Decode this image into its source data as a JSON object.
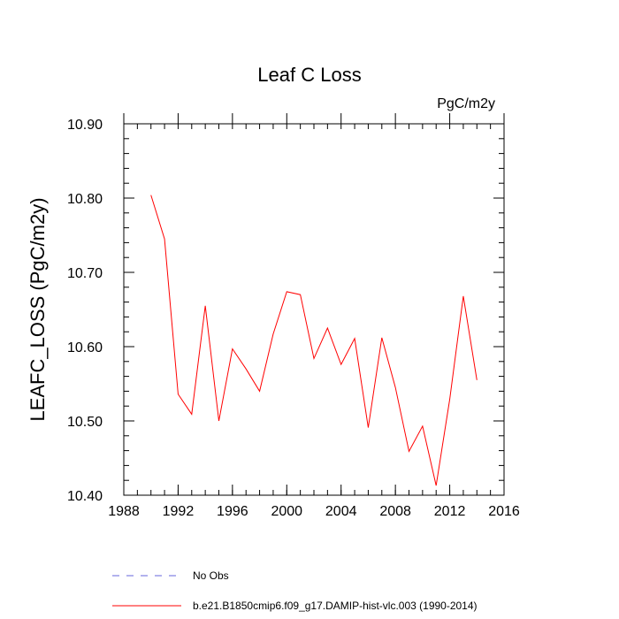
{
  "chart_data": {
    "type": "line",
    "title": "Leaf C Loss",
    "units_label": "PgC/m2y",
    "xlabel": "",
    "ylabel": "LEAFC_LOSS  (PgC/m2y)",
    "xlim": [
      1988,
      2016
    ],
    "ylim": [
      10.4,
      10.9
    ],
    "x_ticks": [
      1988,
      1992,
      1996,
      2000,
      2004,
      2008,
      2012,
      2016
    ],
    "x_minor_step": 1,
    "y_ticks": [
      {
        "value": 10.4,
        "label": "10.40"
      },
      {
        "value": 10.5,
        "label": "10.50"
      },
      {
        "value": 10.6,
        "label": "10.60"
      },
      {
        "value": 10.7,
        "label": "10.70"
      },
      {
        "value": 10.8,
        "label": "10.80"
      },
      {
        "value": 10.9,
        "label": "10.90"
      }
    ],
    "y_minor_step": 0.02,
    "series": [
      {
        "name": "b.e21.B1850cmip6.f09_g17.DAMIP-hist-vlc.003 (1990-2014)",
        "color": "#ff0000",
        "style": "solid",
        "x": [
          1990,
          1991,
          1992,
          1993,
          1994,
          1995,
          1996,
          1997,
          1998,
          1999,
          2000,
          2001,
          2002,
          2003,
          2004,
          2005,
          2006,
          2007,
          2008,
          2009,
          2010,
          2011,
          2012,
          2013,
          2014
        ],
        "values": [
          10.804,
          10.745,
          10.536,
          10.509,
          10.655,
          10.5,
          10.597,
          10.57,
          10.54,
          10.617,
          10.674,
          10.67,
          10.584,
          10.625,
          10.576,
          10.611,
          10.491,
          10.612,
          10.545,
          10.459,
          10.493,
          10.413,
          10.529,
          10.668,
          10.555
        ]
      }
    ],
    "legend": [
      {
        "label": "No Obs",
        "color": "#6666dd",
        "style": "dashed"
      },
      {
        "label": "b.e21.B1850cmip6.f09_g17.DAMIP-hist-vlc.003 (1990-2014)",
        "color": "#ff0000",
        "style": "solid"
      }
    ],
    "grid": false,
    "legend_position": "bottom"
  }
}
